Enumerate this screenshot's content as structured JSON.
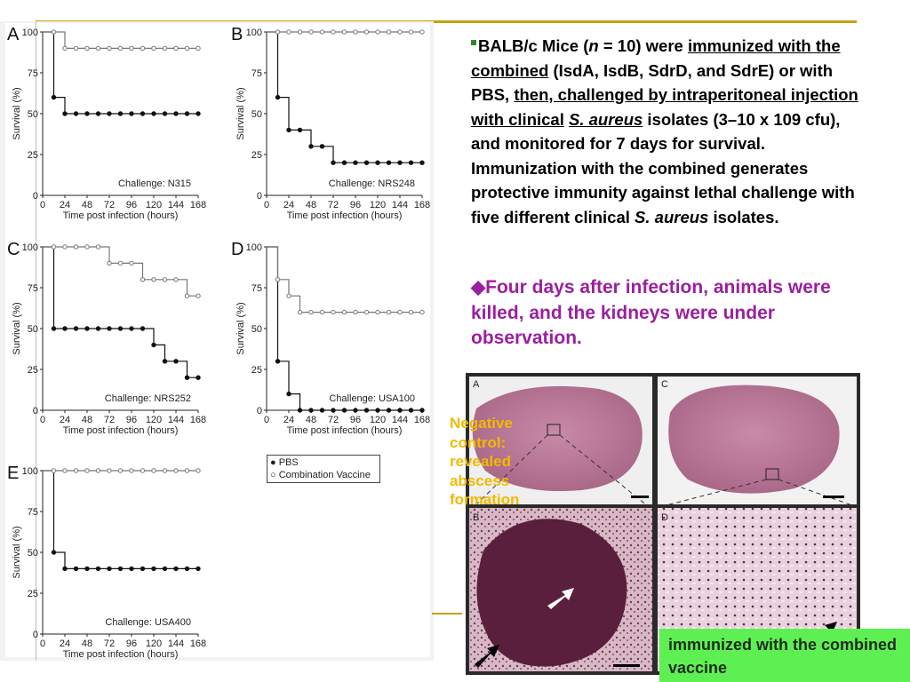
{
  "figure": {
    "axis": {
      "ylabel": "Survival (%)",
      "xlabel": "Time post infection (hours)",
      "yticks": [
        "0",
        "25",
        "50",
        "75",
        "100"
      ],
      "xticks": [
        "0",
        "24",
        "48",
        "72",
        "96",
        "120",
        "144",
        "168"
      ]
    },
    "legend": {
      "pbs": "PBS",
      "vaccine": "Combination Vaccine"
    },
    "panels": [
      {
        "letter": "A",
        "challenge": "Challenge: N315"
      },
      {
        "letter": "B",
        "challenge": "Challenge: NRS248"
      },
      {
        "letter": "C",
        "challenge": "Challenge: NRS252"
      },
      {
        "letter": "D",
        "challenge": "Challenge: USA100"
      },
      {
        "letter": "E",
        "challenge": "Challenge: USA400"
      }
    ]
  },
  "chart_data": [
    {
      "type": "line",
      "panel": "A",
      "title": "Challenge: N315",
      "xlabel": "Time post infection (hours)",
      "ylabel": "Survival (%)",
      "xlim": [
        0,
        168
      ],
      "ylim": [
        0,
        100
      ],
      "series": [
        {
          "name": "PBS",
          "points": [
            [
              0,
              100
            ],
            [
              12,
              60
            ],
            [
              24,
              50
            ],
            [
              168,
              50
            ]
          ]
        },
        {
          "name": "Combination Vaccine",
          "points": [
            [
              0,
              100
            ],
            [
              24,
              90
            ],
            [
              168,
              90
            ]
          ]
        }
      ]
    },
    {
      "type": "line",
      "panel": "B",
      "title": "Challenge: NRS248",
      "xlabel": "Time post infection (hours)",
      "ylabel": "Survival (%)",
      "xlim": [
        0,
        168
      ],
      "ylim": [
        0,
        100
      ],
      "series": [
        {
          "name": "PBS",
          "points": [
            [
              0,
              100
            ],
            [
              12,
              60
            ],
            [
              24,
              40
            ],
            [
              48,
              30
            ],
            [
              72,
              20
            ],
            [
              168,
              20
            ]
          ]
        },
        {
          "name": "Combination Vaccine",
          "points": [
            [
              0,
              100
            ],
            [
              168,
              100
            ]
          ]
        }
      ]
    },
    {
      "type": "line",
      "panel": "C",
      "title": "Challenge: NRS252",
      "xlabel": "Time post infection (hours)",
      "ylabel": "Survival (%)",
      "xlim": [
        0,
        168
      ],
      "ylim": [
        0,
        100
      ],
      "series": [
        {
          "name": "PBS",
          "points": [
            [
              0,
              100
            ],
            [
              12,
              50
            ],
            [
              120,
              40
            ],
            [
              132,
              30
            ],
            [
              156,
              20
            ],
            [
              168,
              20
            ]
          ]
        },
        {
          "name": "Combination Vaccine",
          "points": [
            [
              0,
              100
            ],
            [
              72,
              90
            ],
            [
              108,
              80
            ],
            [
              156,
              70
            ],
            [
              168,
              70
            ]
          ]
        }
      ]
    },
    {
      "type": "line",
      "panel": "D",
      "title": "Challenge: USA100",
      "xlabel": "Time post infection (hours)",
      "ylabel": "Survival (%)",
      "xlim": [
        0,
        168
      ],
      "ylim": [
        0,
        100
      ],
      "series": [
        {
          "name": "PBS",
          "points": [
            [
              0,
              100
            ],
            [
              12,
              30
            ],
            [
              24,
              10
            ],
            [
              36,
              0
            ],
            [
              168,
              0
            ]
          ]
        },
        {
          "name": "Combination Vaccine",
          "points": [
            [
              0,
              100
            ],
            [
              12,
              80
            ],
            [
              24,
              70
            ],
            [
              36,
              60
            ],
            [
              168,
              60
            ]
          ]
        }
      ]
    },
    {
      "type": "line",
      "panel": "E",
      "title": "Challenge: USA400",
      "xlabel": "Time post infection (hours)",
      "ylabel": "Survival (%)",
      "xlim": [
        0,
        168
      ],
      "ylim": [
        0,
        100
      ],
      "series": [
        {
          "name": "PBS",
          "points": [
            [
              0,
              100
            ],
            [
              12,
              50
            ],
            [
              24,
              40
            ],
            [
              168,
              40
            ]
          ]
        },
        {
          "name": "Combination Vaccine",
          "points": [
            [
              0,
              100
            ],
            [
              168,
              100
            ]
          ]
        }
      ]
    }
  ],
  "text": {
    "b1": "BALB/c Mice (",
    "b1n": "n",
    "b1b": " = 10) were ",
    "b1u1": "immunized with the combined",
    "b1c": "  (IsdA, IsdB, SdrD, and SdrE) or with PBS, ",
    "b1u2": "then, challenged by intraperitoneal injection with clinical",
    "b1sp": "S. aureus",
    "b1d": " isolates (3–10 x 109 cfu), and monitored for 7 days for survival. Immunization with the combined generates protective immunity against lethal challenge with five different clinical ",
    "b1sp2": "S. aureus",
    "b1e": " isolates.",
    "purple": "◆Four days after infection, animals were killed, and the kidneys were under observation.",
    "negative": "Negative control: revealed abscess formation",
    "immunized": "immunized with the combined vaccine"
  },
  "histo": {
    "labels": [
      "A",
      "B",
      "C",
      "D"
    ]
  },
  "colors": {
    "accent": "#c8a000",
    "purple": "#9b1fa0",
    "negative": "#f2b900",
    "green": "#5ef052"
  }
}
